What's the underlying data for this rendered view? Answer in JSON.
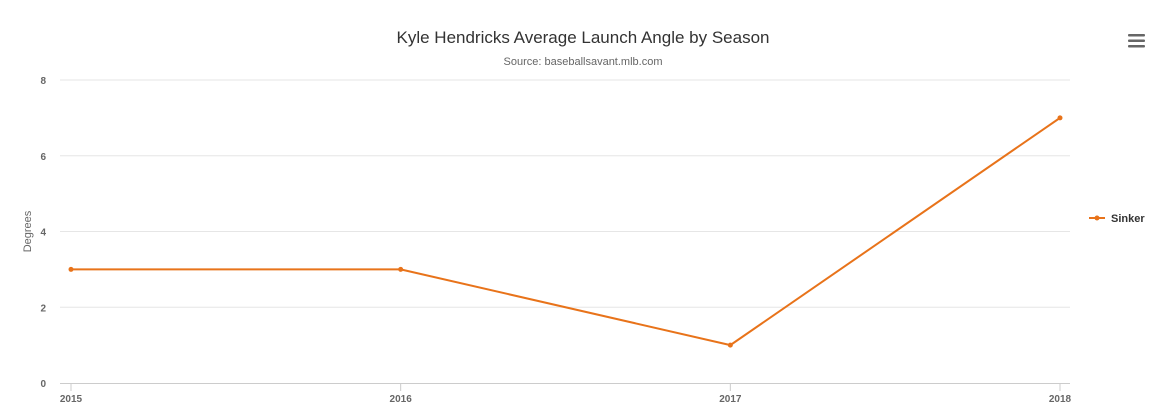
{
  "chart_data": {
    "type": "line",
    "title": "Kyle Hendricks Average Launch Angle by Season",
    "subtitle": "Source: baseballsavant.mlb.com",
    "xlabel": "",
    "ylabel": "Degrees",
    "categories": [
      "2015",
      "2016",
      "2017",
      "2018"
    ],
    "series": [
      {
        "name": "Sinker",
        "values": [
          3,
          3,
          1,
          7
        ],
        "color": "#e8731a"
      }
    ],
    "ylim": [
      0,
      8
    ],
    "yticks": [
      "0",
      "2",
      "4",
      "6",
      "8"
    ],
    "grid": true,
    "legend": "right"
  },
  "menu": {
    "icon": "hamburger-menu-icon"
  }
}
